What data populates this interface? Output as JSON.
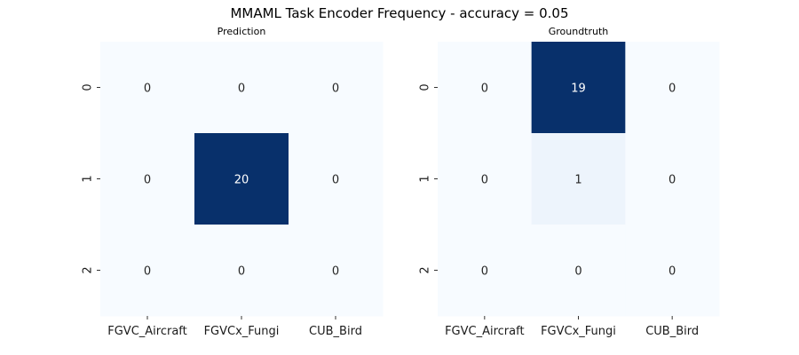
{
  "figure": {
    "title": "MMAML Task Encoder Frequency - accuracy = 0.05"
  },
  "chart_data": [
    {
      "type": "heatmap",
      "title": "Prediction",
      "x_categories": [
        "FGVC_Aircraft",
        "FGVCx_Fungi",
        "CUB_Bird"
      ],
      "y_categories": [
        "0",
        "1",
        "2"
      ],
      "values": [
        [
          0,
          0,
          0
        ],
        [
          0,
          20,
          0
        ],
        [
          0,
          0,
          0
        ]
      ],
      "colormap": "Blues",
      "vmin": 0,
      "vmax": 20,
      "colors": {
        "low": "#f7fbff",
        "mid": "#c6dbef",
        "high": "#08306b"
      }
    },
    {
      "type": "heatmap",
      "title": "Groundtruth",
      "x_categories": [
        "FGVC_Aircraft",
        "FGVCx_Fungi",
        "CUB_Bird"
      ],
      "y_categories": [
        "0",
        "1",
        "2"
      ],
      "values": [
        [
          0,
          19,
          0
        ],
        [
          0,
          1,
          0
        ],
        [
          0,
          0,
          0
        ]
      ],
      "colormap": "Blues",
      "vmin": 0,
      "vmax": 19,
      "colors": {
        "low": "#f7fbff",
        "mid": "#c6dbef",
        "high": "#08306b"
      }
    }
  ]
}
